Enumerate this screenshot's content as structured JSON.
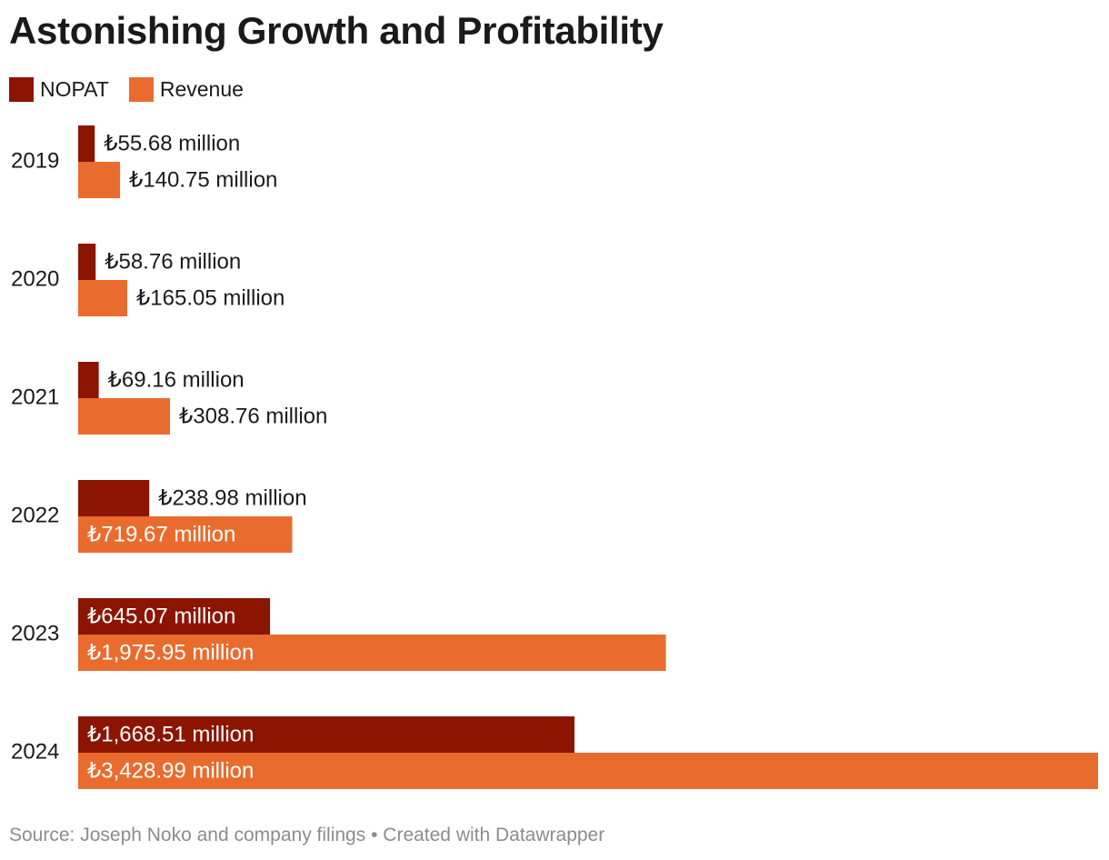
{
  "title": "Astonishing Growth and Profitability",
  "footer": {
    "source": "Source: Joseph Noko and company filings",
    "separator": "•",
    "credit": "Created with Datawrapper"
  },
  "colors": {
    "nopat": "#8b1500",
    "revenue": "#e96c2e",
    "label_dark": "#1a1a1a",
    "label_light": "#ffffff"
  },
  "chart_data": {
    "type": "bar",
    "orientation": "horizontal",
    "categories": [
      "2019",
      "2020",
      "2021",
      "2022",
      "2023",
      "2024"
    ],
    "series": [
      {
        "name": "NOPAT",
        "values": [
          55.68,
          58.76,
          69.16,
          238.98,
          645.07,
          1668.51
        ],
        "labels": [
          "₺55.68 million",
          "₺58.76 million",
          "₺69.16 million",
          "₺238.98 million",
          "₺645.07 million",
          "₺1,668.51 million"
        ]
      },
      {
        "name": "Revenue",
        "values": [
          140.75,
          165.05,
          308.76,
          719.67,
          1975.95,
          3428.99
        ],
        "labels": [
          "₺140.75 million",
          "₺165.05 million",
          "₺308.76 million",
          "₺719.67 million",
          "₺1,975.95 million",
          "₺3,428.99 million"
        ]
      }
    ],
    "xlim": [
      0,
      3428.99
    ],
    "grid": false,
    "legend_position": "top-left"
  }
}
